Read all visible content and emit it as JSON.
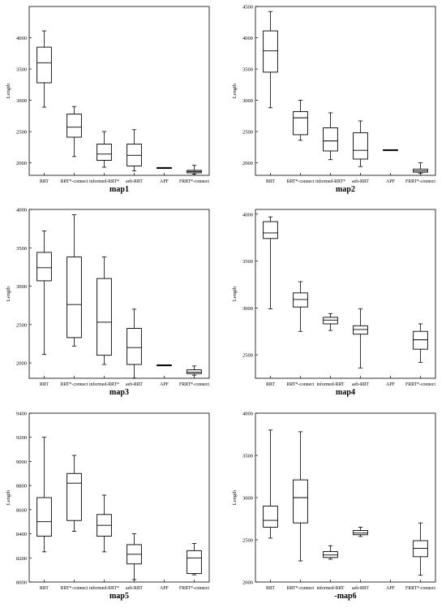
{
  "chart_data": [
    {
      "type": "box",
      "title": "map1",
      "ylabel": "Length",
      "ylim": [
        1800,
        4500
      ],
      "yticks": [
        2000,
        2500,
        3000,
        3500,
        4000
      ],
      "categories": [
        "RRT",
        "RRT*-connect",
        "informed-RRT*",
        "aeb-RRT",
        "APF",
        "FRRT*-connect"
      ],
      "boxes": [
        {
          "whisker_low": 2890,
          "q1": 3280,
          "median": 3600,
          "q3": 3850,
          "whisker_high": 4110
        },
        {
          "whisker_low": 2100,
          "q1": 2410,
          "median": 2570,
          "q3": 2780,
          "whisker_high": 2900
        },
        {
          "whisker_low": 1930,
          "q1": 2040,
          "median": 2140,
          "q3": 2300,
          "whisker_high": 2500
        },
        {
          "whisker_low": 1870,
          "q1": 1950,
          "median": 2120,
          "q3": 2300,
          "whisker_high": 2530
        },
        {
          "whisker_low": 1915,
          "q1": 1915,
          "median": 1920,
          "q3": 1925,
          "whisker_high": 1925
        },
        {
          "whisker_low": 1820,
          "q1": 1840,
          "median": 1860,
          "q3": 1880,
          "whisker_high": 1960
        }
      ]
    },
    {
      "type": "box",
      "title": "map2",
      "ylabel": "Length",
      "ylim": [
        1800,
        4500
      ],
      "yticks": [
        2000,
        2500,
        3000,
        3500,
        4000,
        4500
      ],
      "categories": [
        "RRT",
        "RRT*-connect",
        "informed-RRT*",
        "aeb-RRT",
        "APF",
        "FRRT*-connect"
      ],
      "boxes": [
        {
          "whisker_low": 2880,
          "q1": 3450,
          "median": 3790,
          "q3": 4110,
          "whisker_high": 4420
        },
        {
          "whisker_low": 2360,
          "q1": 2450,
          "median": 2720,
          "q3": 2820,
          "whisker_high": 3000
        },
        {
          "whisker_low": 2050,
          "q1": 2190,
          "median": 2350,
          "q3": 2560,
          "whisker_high": 2800
        },
        {
          "whisker_low": 1940,
          "q1": 2060,
          "median": 2200,
          "q3": 2480,
          "whisker_high": 2670
        },
        {
          "whisker_low": 2200,
          "q1": 2200,
          "median": 2205,
          "q3": 2210,
          "whisker_high": 2210
        },
        {
          "whisker_low": 1830,
          "q1": 1850,
          "median": 1870,
          "q3": 1900,
          "whisker_high": 2000
        }
      ]
    },
    {
      "type": "box",
      "title": "map3",
      "ylabel": "Length",
      "ylim": [
        1800,
        4000
      ],
      "yticks": [
        2000,
        2500,
        3000,
        3500,
        4000
      ],
      "categories": [
        "RRT",
        "RRT*-connect",
        "informed-RRT*",
        "aeb-RRT",
        "APF",
        "FRRT*-connect"
      ],
      "boxes": [
        {
          "whisker_low": 2110,
          "q1": 3070,
          "median": 3240,
          "q3": 3440,
          "whisker_high": 3720
        },
        {
          "whisker_low": 2220,
          "q1": 2330,
          "median": 2760,
          "q3": 3380,
          "whisker_high": 3930
        },
        {
          "whisker_low": 1980,
          "q1": 2100,
          "median": 2530,
          "q3": 3100,
          "whisker_high": 3380
        },
        {
          "whisker_low": 1800,
          "q1": 1980,
          "median": 2200,
          "q3": 2450,
          "whisker_high": 2700
        },
        {
          "whisker_low": 1965,
          "q1": 1965,
          "median": 1970,
          "q3": 1975,
          "whisker_high": 1975
        },
        {
          "whisker_low": 1840,
          "q1": 1860,
          "median": 1880,
          "q3": 1910,
          "whisker_high": 1960
        }
      ]
    },
    {
      "type": "box",
      "title": "map4",
      "ylabel": "Length",
      "ylim": [
        2250,
        4050
      ],
      "yticks": [
        2500,
        3000,
        3500,
        4000
      ],
      "categories": [
        "RRT",
        "RRT*-connect",
        "informed-RRT",
        "aeb-RRT",
        "APF",
        "FRRT*-connect"
      ],
      "boxes": [
        {
          "whisker_low": 2990,
          "q1": 3740,
          "median": 3800,
          "q3": 3920,
          "whisker_high": 3970
        },
        {
          "whisker_low": 2750,
          "q1": 3010,
          "median": 3090,
          "q3": 3160,
          "whisker_high": 3280
        },
        {
          "whisker_low": 2760,
          "q1": 2830,
          "median": 2870,
          "q3": 2900,
          "whisker_high": 2940
        },
        {
          "whisker_low": 2360,
          "q1": 2720,
          "median": 2770,
          "q3": 2810,
          "whisker_high": 2990
        },
        null,
        {
          "whisker_low": 2420,
          "q1": 2560,
          "median": 2660,
          "q3": 2750,
          "whisker_high": 2830
        }
      ]
    },
    {
      "type": "box",
      "title": "map5",
      "ylabel": "Length",
      "ylim": [
        8000,
        9400
      ],
      "yticks": [
        8000,
        8200,
        8400,
        8600,
        8800,
        9000,
        9200,
        9400
      ],
      "categories": [
        "RRT",
        "RRT*-connect",
        "informed-RRT*",
        "aeb-RRT",
        "APF",
        "FRRT*-connect"
      ],
      "boxes": [
        {
          "whisker_low": 8250,
          "q1": 8380,
          "median": 8500,
          "q3": 8700,
          "whisker_high": 9200
        },
        {
          "whisker_low": 8420,
          "q1": 8510,
          "median": 8820,
          "q3": 8900,
          "whisker_high": 9050
        },
        {
          "whisker_low": 8250,
          "q1": 8380,
          "median": 8470,
          "q3": 8560,
          "whisker_high": 8720
        },
        {
          "whisker_low": 8020,
          "q1": 8150,
          "median": 8230,
          "q3": 8310,
          "whisker_high": 8400
        },
        null,
        {
          "whisker_low": 8060,
          "q1": 8070,
          "median": 8200,
          "q3": 8260,
          "whisker_high": 8320
        }
      ]
    },
    {
      "type": "box",
      "title": "-map6",
      "ylabel": "Length",
      "ylim": [
        2000,
        4000
      ],
      "yticks": [
        2000,
        2500,
        3000,
        3500,
        4000
      ],
      "categories": [
        "RRT",
        "RRT*-connect",
        "informed-RRT",
        "aeb-RRT",
        "APF",
        "FRRT*-connect"
      ],
      "boxes": [
        {
          "whisker_low": 2520,
          "q1": 2650,
          "median": 2730,
          "q3": 2900,
          "whisker_high": 3800
        },
        {
          "whisker_low": 2250,
          "q1": 2700,
          "median": 3000,
          "q3": 3210,
          "whisker_high": 3780
        },
        {
          "whisker_low": 2270,
          "q1": 2290,
          "median": 2320,
          "q3": 2360,
          "whisker_high": 2430
        },
        {
          "whisker_low": 2540,
          "q1": 2560,
          "median": 2580,
          "q3": 2610,
          "whisker_high": 2650
        },
        null,
        {
          "whisker_low": 2080,
          "q1": 2300,
          "median": 2400,
          "q3": 2490,
          "whisker_high": 2700
        }
      ]
    }
  ]
}
